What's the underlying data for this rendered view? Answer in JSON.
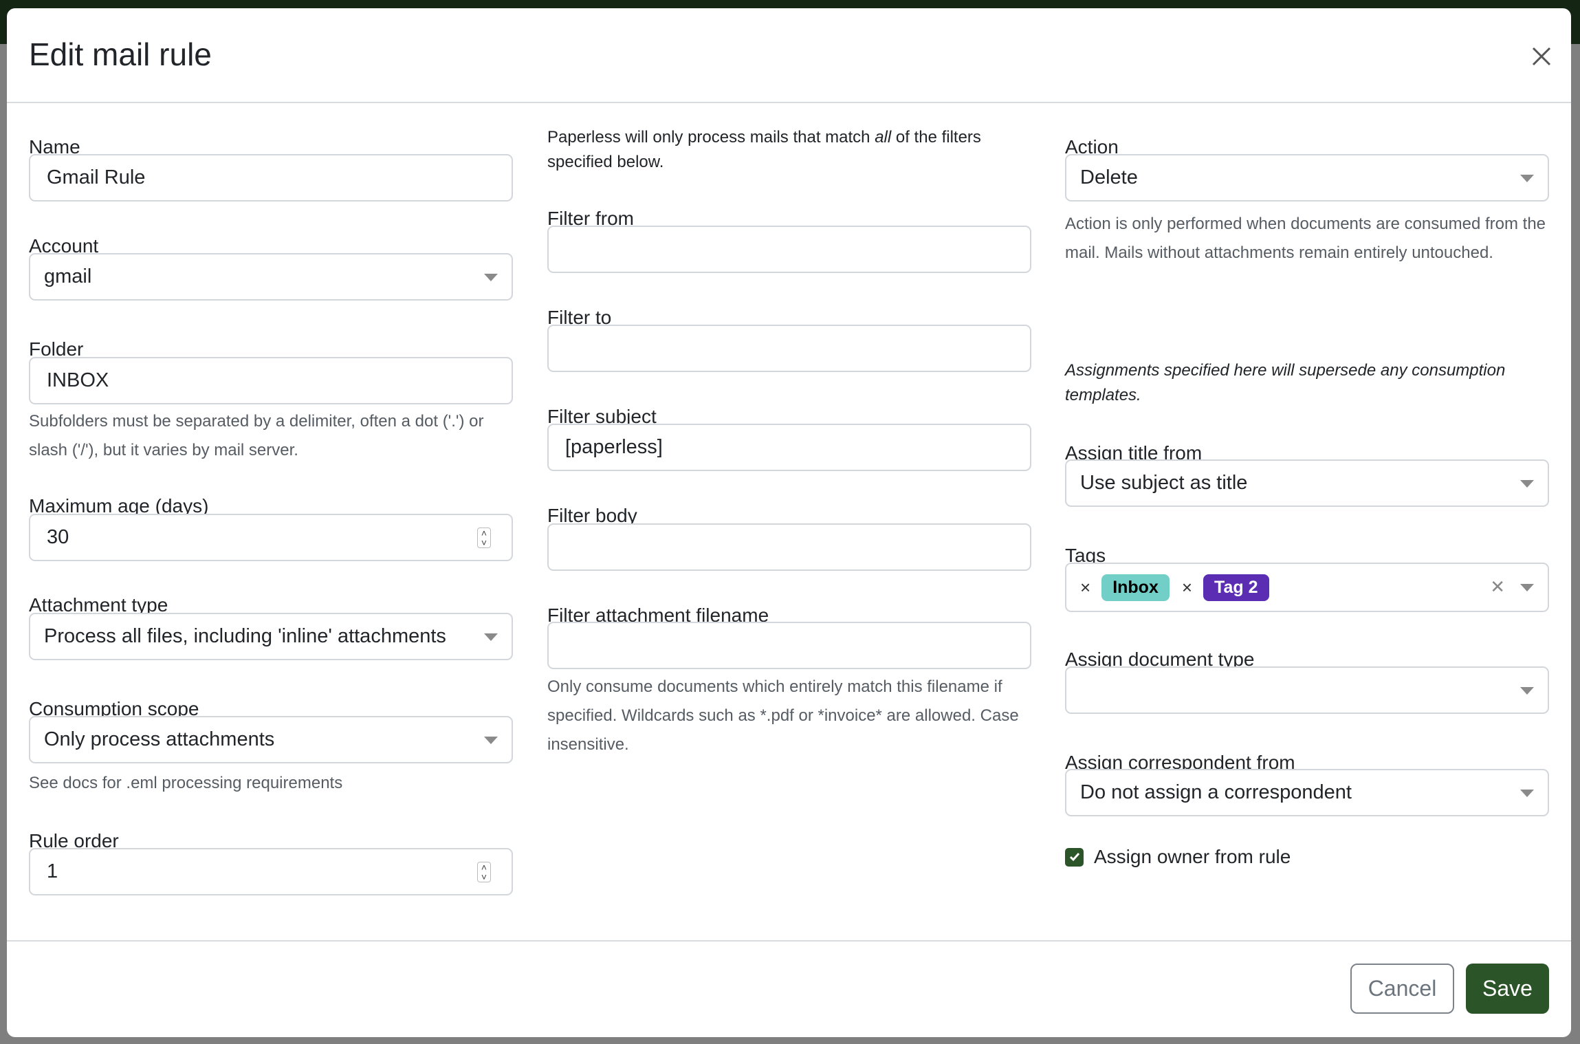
{
  "dialog": {
    "title": "Edit mail rule",
    "close_icon": "close-icon"
  },
  "left": {
    "name": {
      "label": "Name",
      "value": "Gmail Rule"
    },
    "account": {
      "label": "Account",
      "value": "gmail"
    },
    "folder": {
      "label": "Folder",
      "value": "INBOX",
      "help": "Subfolders must be separated by a delimiter, often a dot ('.') or slash ('/'), but it varies by mail server."
    },
    "max_age": {
      "label": "Maximum age (days)",
      "value": "30"
    },
    "attachment_type": {
      "label": "Attachment type",
      "value": "Process all files, including 'inline' attachments"
    },
    "consumption_scope": {
      "label": "Consumption scope",
      "value": "Only process attachments",
      "help": "See docs for .eml processing requirements"
    },
    "rule_order": {
      "label": "Rule order",
      "value": "1"
    }
  },
  "middle": {
    "intro_before": "Paperless will only process mails that match ",
    "intro_em": "all",
    "intro_after": " of the filters specified below.",
    "filter_from": {
      "label": "Filter from",
      "value": ""
    },
    "filter_to": {
      "label": "Filter to",
      "value": ""
    },
    "filter_subject": {
      "label": "Filter subject",
      "value": "[paperless]"
    },
    "filter_body": {
      "label": "Filter body",
      "value": ""
    },
    "filter_attachment": {
      "label": "Filter attachment filename",
      "value": "",
      "help": "Only consume documents which entirely match this filename if specified. Wildcards such as *.pdf or *invoice* are allowed. Case insensitive."
    }
  },
  "right": {
    "action": {
      "label": "Action",
      "value": "Delete",
      "help": "Action is only performed when documents are consumed from the mail. Mails without attachments remain entirely untouched."
    },
    "assign_note": "Assignments specified here will supersede any consumption templates.",
    "assign_title": {
      "label": "Assign title from",
      "value": "Use subject as title"
    },
    "tags": {
      "label": "Tags",
      "items": [
        {
          "label": "Inbox",
          "bg": "#72cfc7",
          "fg": "#000000"
        },
        {
          "label": "Tag 2",
          "bg": "#5a2db3",
          "fg": "#ffffff"
        }
      ],
      "remove_glyph": "×",
      "clear_glyph": "✕"
    },
    "doc_type": {
      "label": "Assign document type",
      "value": ""
    },
    "correspondent": {
      "label": "Assign correspondent from",
      "value": "Do not assign a correspondent"
    },
    "owner": {
      "label": "Assign owner from rule",
      "checked": true
    }
  },
  "footer": {
    "cancel": "Cancel",
    "save": "Save"
  },
  "colors": {
    "primary": "#2b5528",
    "topbar": "#142613"
  }
}
